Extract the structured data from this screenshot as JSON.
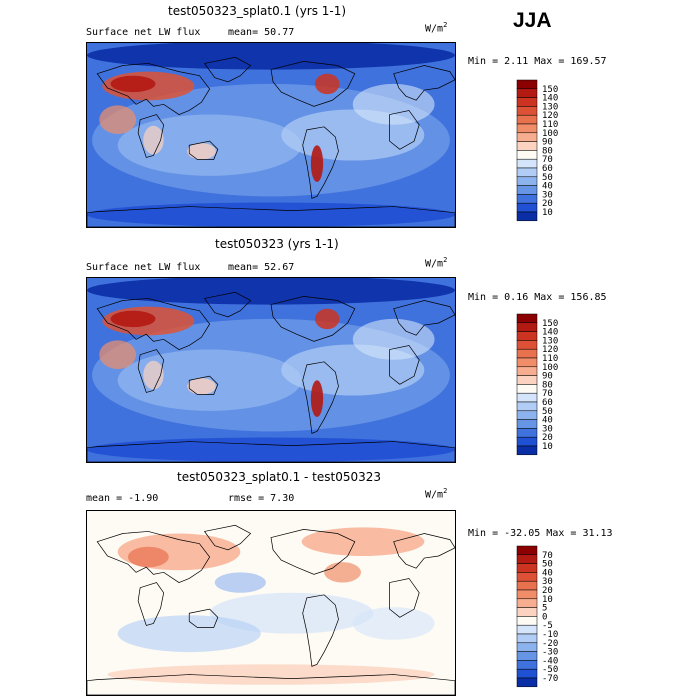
{
  "season": "JJA",
  "panels": [
    {
      "title": "test050323_splat0.1 (yrs 1-1)",
      "left_label": "Surface net LW flux",
      "stat1_label": "mean=",
      "stat1_value": "50.77",
      "stat2_label": "",
      "stat2_value": "",
      "units_base": "W/m",
      "units_exp": "2",
      "min_label": "Min =",
      "min_value": "2.11",
      "max_label": "Max =",
      "max_value": "169.57",
      "levels": [
        "150",
        "140",
        "130",
        "120",
        "110",
        "100",
        "90",
        "80",
        "70",
        "60",
        "50",
        "40",
        "30",
        "20",
        "10"
      ],
      "colors": [
        "#8b0000",
        "#b21a12",
        "#cc3320",
        "#dd5236",
        "#e8714e",
        "#f08e6a",
        "#f7ad8f",
        "#fbd3c0",
        "#fdfbf4",
        "#d4e4fa",
        "#b1cdf5",
        "#8db3ee",
        "#6795e6",
        "#4072dd",
        "#2050d3",
        "#0a2ea6"
      ]
    },
    {
      "title": "test050323 (yrs 1-1)",
      "left_label": "Surface net LW flux",
      "stat1_label": "mean=",
      "stat1_value": "52.67",
      "stat2_label": "",
      "stat2_value": "",
      "units_base": "W/m",
      "units_exp": "2",
      "min_label": "Min =",
      "min_value": "0.16",
      "max_label": "Max =",
      "max_value": "156.85",
      "levels": [
        "150",
        "140",
        "130",
        "120",
        "110",
        "100",
        "90",
        "80",
        "70",
        "60",
        "50",
        "40",
        "30",
        "20",
        "10"
      ],
      "colors": [
        "#8b0000",
        "#b21a12",
        "#cc3320",
        "#dd5236",
        "#e8714e",
        "#f08e6a",
        "#f7ad8f",
        "#fbd3c0",
        "#fdfbf4",
        "#d4e4fa",
        "#b1cdf5",
        "#8db3ee",
        "#6795e6",
        "#4072dd",
        "#2050d3",
        "#0a2ea6"
      ]
    },
    {
      "title": "test050323_splat0.1 - test050323",
      "left_label": "",
      "stat1_label": "mean =",
      "stat1_value": "-1.90",
      "stat2_label": "rmse =",
      "stat2_value": "7.30",
      "units_base": "W/m",
      "units_exp": "2",
      "min_label": "Min =",
      "min_value": "-32.05",
      "max_label": "Max =",
      "max_value": "31.13",
      "levels": [
        "70",
        "50",
        "40",
        "30",
        "20",
        "10",
        "5",
        "0",
        "-5",
        "-10",
        "-20",
        "-30",
        "-40",
        "-50",
        "-70"
      ],
      "colors": [
        "#8b0000",
        "#b21a12",
        "#cc3320",
        "#dd5236",
        "#e8714e",
        "#f08e6a",
        "#f7ad8f",
        "#fbd3c0",
        "#fdfbf4",
        "#d4e4fa",
        "#b1cdf5",
        "#8db3ee",
        "#6795e6",
        "#4072dd",
        "#2050d3",
        "#0a2ea6"
      ]
    }
  ],
  "chart_data": [
    {
      "type": "heatmap",
      "title": "test050323_splat0.1 (yrs 1-1)",
      "variable": "Surface net LW flux",
      "units": "W/m2",
      "mean": 50.77,
      "min": 2.11,
      "max": 169.57,
      "colorbar_levels": [
        10,
        20,
        30,
        40,
        50,
        60,
        70,
        80,
        90,
        100,
        110,
        120,
        130,
        140,
        150
      ]
    },
    {
      "type": "heatmap",
      "title": "test050323 (yrs 1-1)",
      "variable": "Surface net LW flux",
      "units": "W/m2",
      "mean": 52.67,
      "min": 0.16,
      "max": 156.85,
      "colorbar_levels": [
        10,
        20,
        30,
        40,
        50,
        60,
        70,
        80,
        90,
        100,
        110,
        120,
        130,
        140,
        150
      ]
    },
    {
      "type": "heatmap",
      "title": "test050323_splat0.1 - test050323",
      "units": "W/m2",
      "mean": -1.9,
      "rmse": 7.3,
      "min": -32.05,
      "max": 31.13,
      "colorbar_levels": [
        -70,
        -50,
        -40,
        -30,
        -20,
        -10,
        -5,
        0,
        5,
        10,
        20,
        30,
        40,
        50,
        70
      ]
    }
  ]
}
